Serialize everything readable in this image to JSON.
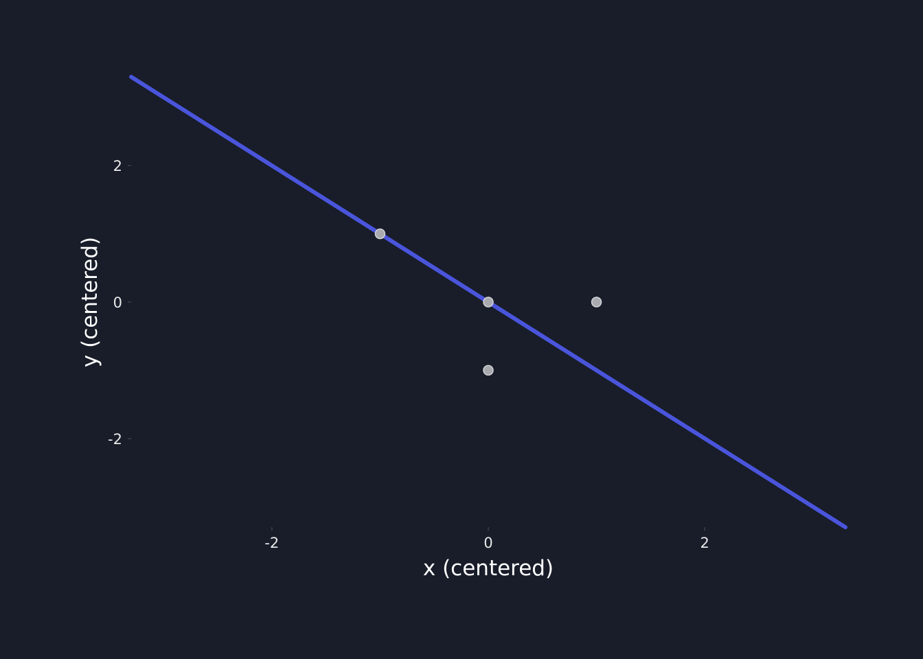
{
  "colors": {
    "background": "#181d29",
    "fit_line": "#4a55dc",
    "points_fill": "#a9aab0",
    "points_stroke": "#d4d4d8",
    "text": "#e8e8e8"
  },
  "chart_data": {
    "type": "scatter",
    "title": "",
    "xlabel": "x (centered)",
    "ylabel": "y (centered)",
    "xlim": [
      -3.3,
      3.3
    ],
    "ylim": [
      -3.3,
      3.3
    ],
    "x_ticks": [
      -2,
      0,
      2
    ],
    "y_ticks": [
      -2,
      0,
      2
    ],
    "x_tick_labels": [
      "-2",
      "0",
      "2"
    ],
    "y_tick_labels": [
      "-2",
      "0",
      "2"
    ],
    "grid": false,
    "legend": "none",
    "series": [
      {
        "kind": "points",
        "x": [
          -1,
          0,
          0,
          1
        ],
        "y": [
          1,
          0,
          -1,
          0
        ]
      },
      {
        "kind": "line",
        "x": [
          -3.3,
          3.3
        ],
        "y": [
          3.3,
          -3.3
        ]
      }
    ]
  }
}
